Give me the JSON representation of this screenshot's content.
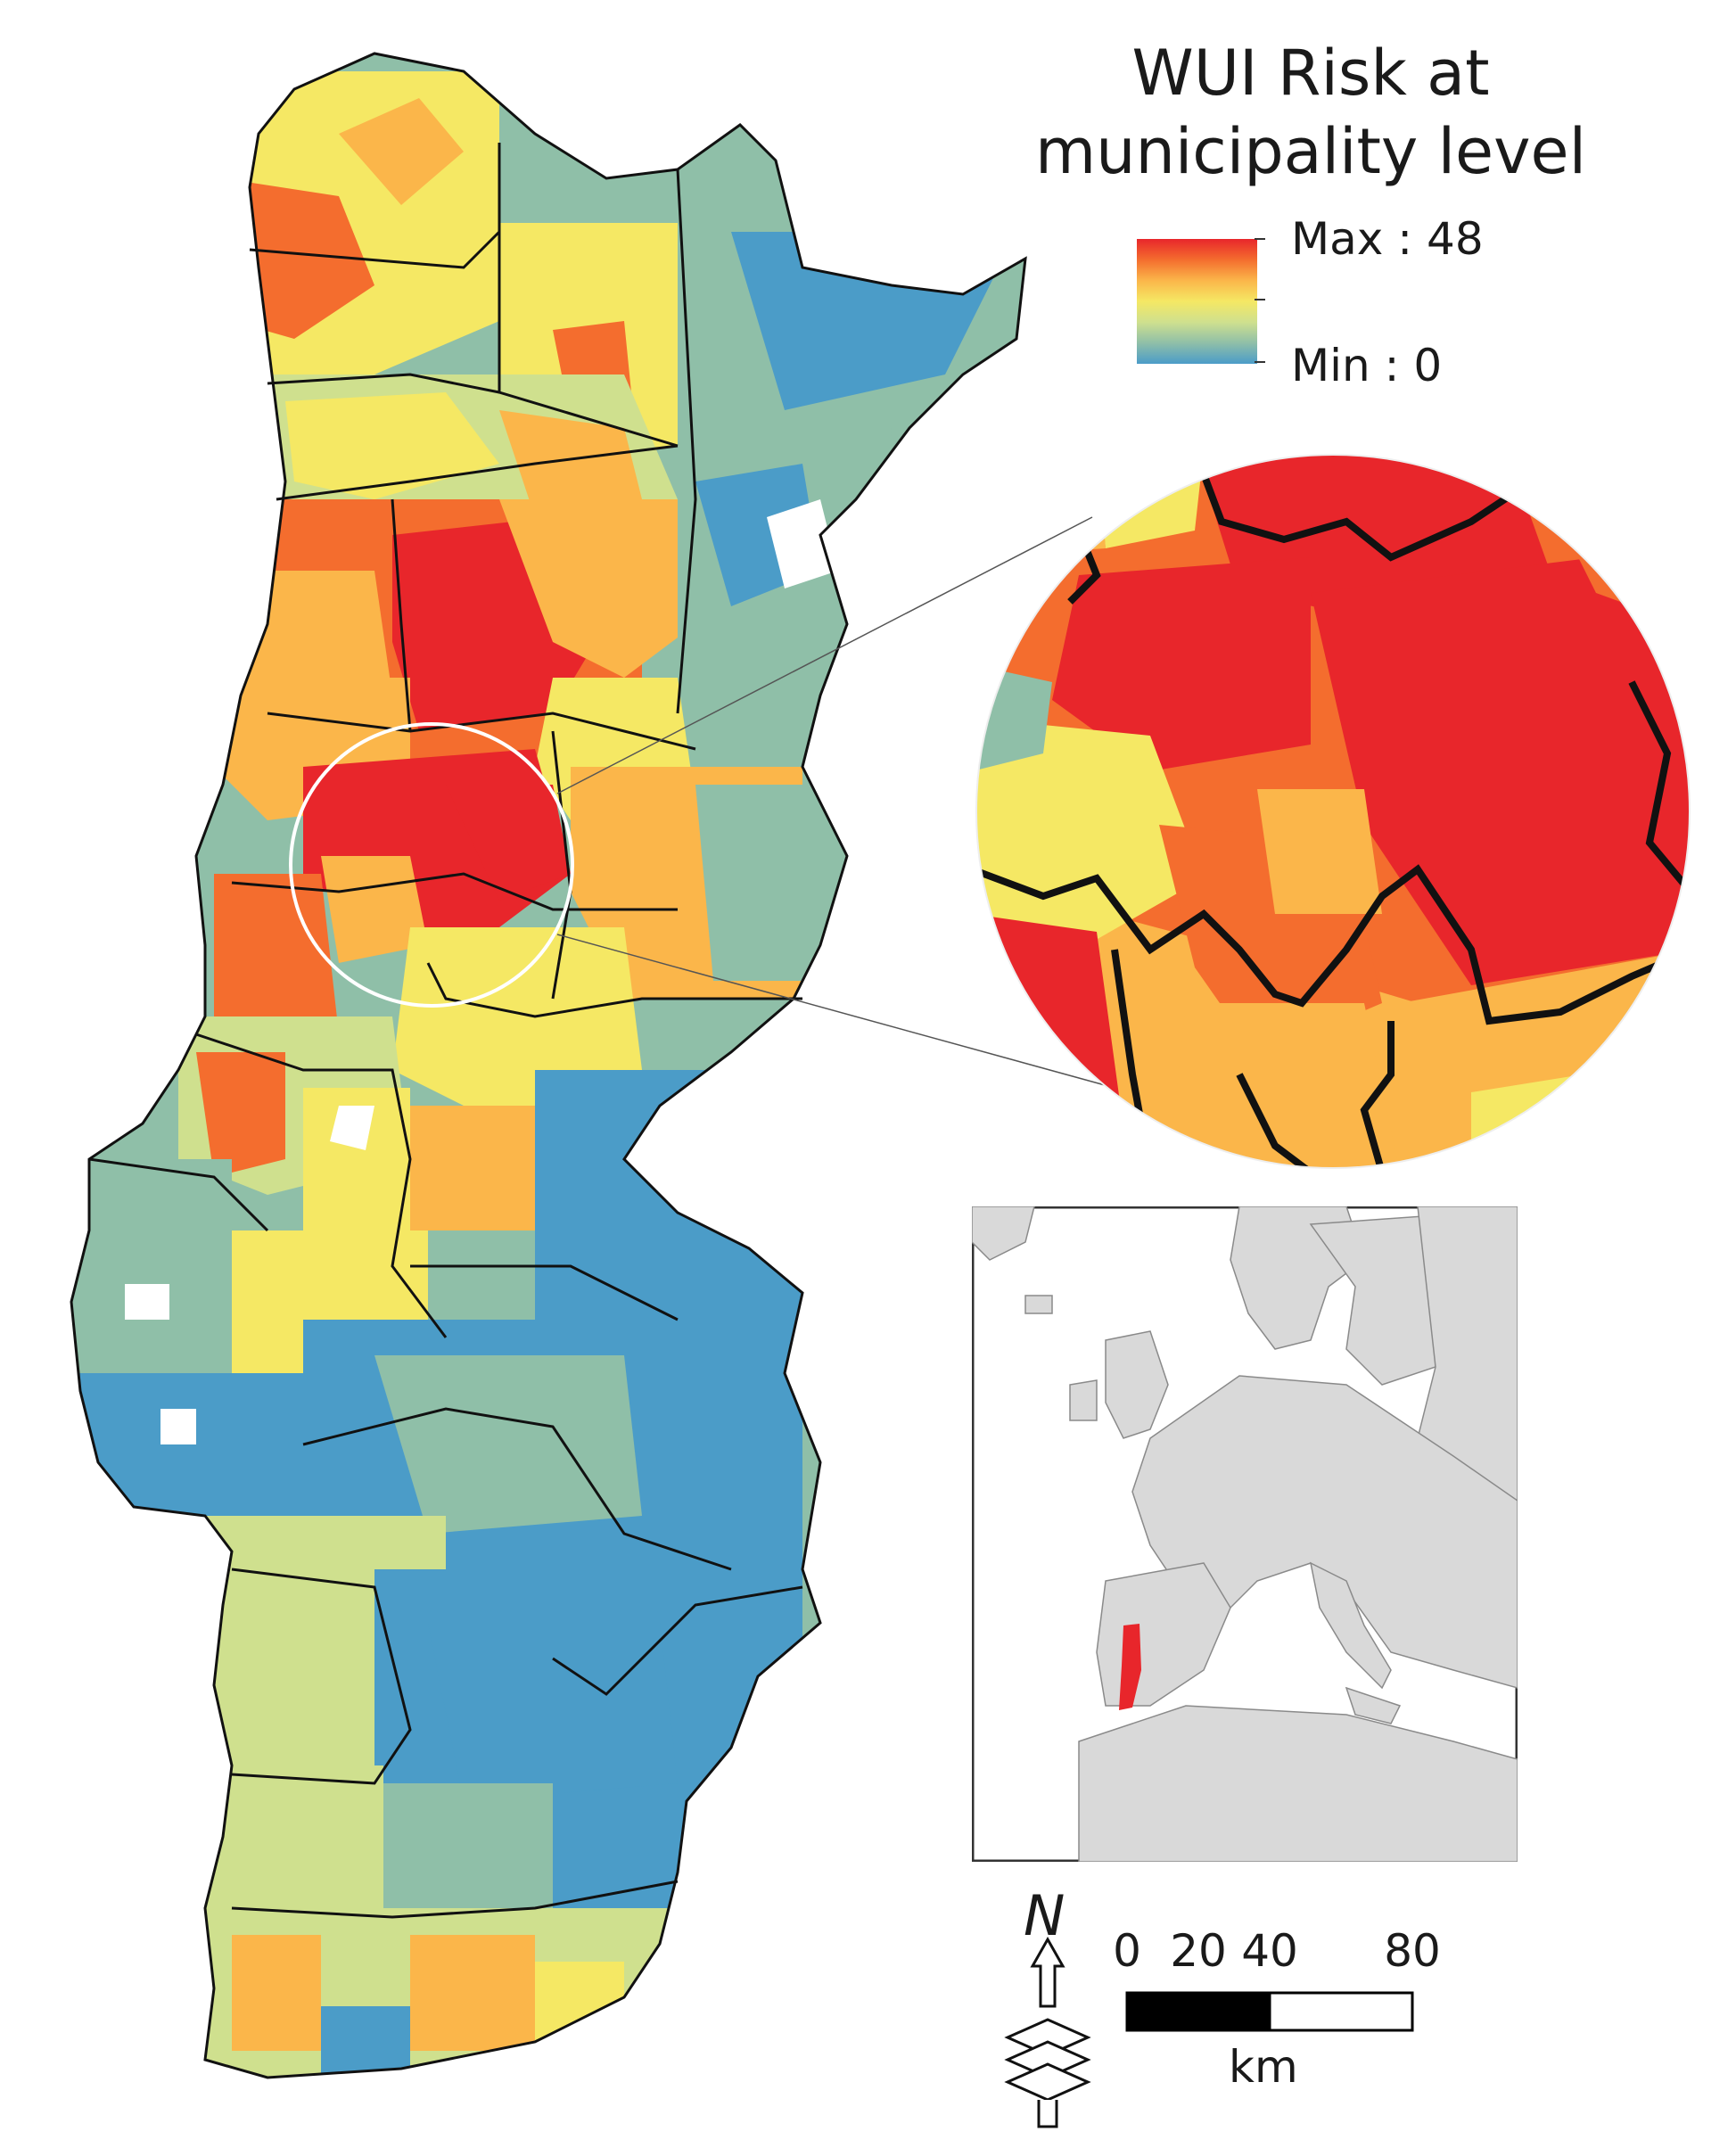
{
  "legend": {
    "title_line1": "WUI Risk at",
    "title_line2": "municipality level",
    "max_label": "Max : 48",
    "min_label": "Min : 0",
    "gradient_colors": [
      "#e8262b",
      "#f46d2e",
      "#fbb64a",
      "#f5e864",
      "#cfe08e",
      "#8fbfa8",
      "#4b9cc8"
    ]
  },
  "scale_bar": {
    "ticks": [
      "0",
      "20",
      "40",
      "80"
    ],
    "unit": "km"
  },
  "north_arrow": {
    "letter": "N"
  },
  "colors": {
    "high": "#e8262b",
    "mid_high": "#f46d2e",
    "orange": "#fbb64a",
    "yellow": "#f5e864",
    "yellow_green": "#cfe08e",
    "teal": "#8fbfa8",
    "blue": "#4b9cc8",
    "inset_land": "#d9d9d9",
    "inset_highlight": "#e8262b"
  },
  "icons": [
    "north-arrow-icon",
    "layers-icon"
  ]
}
